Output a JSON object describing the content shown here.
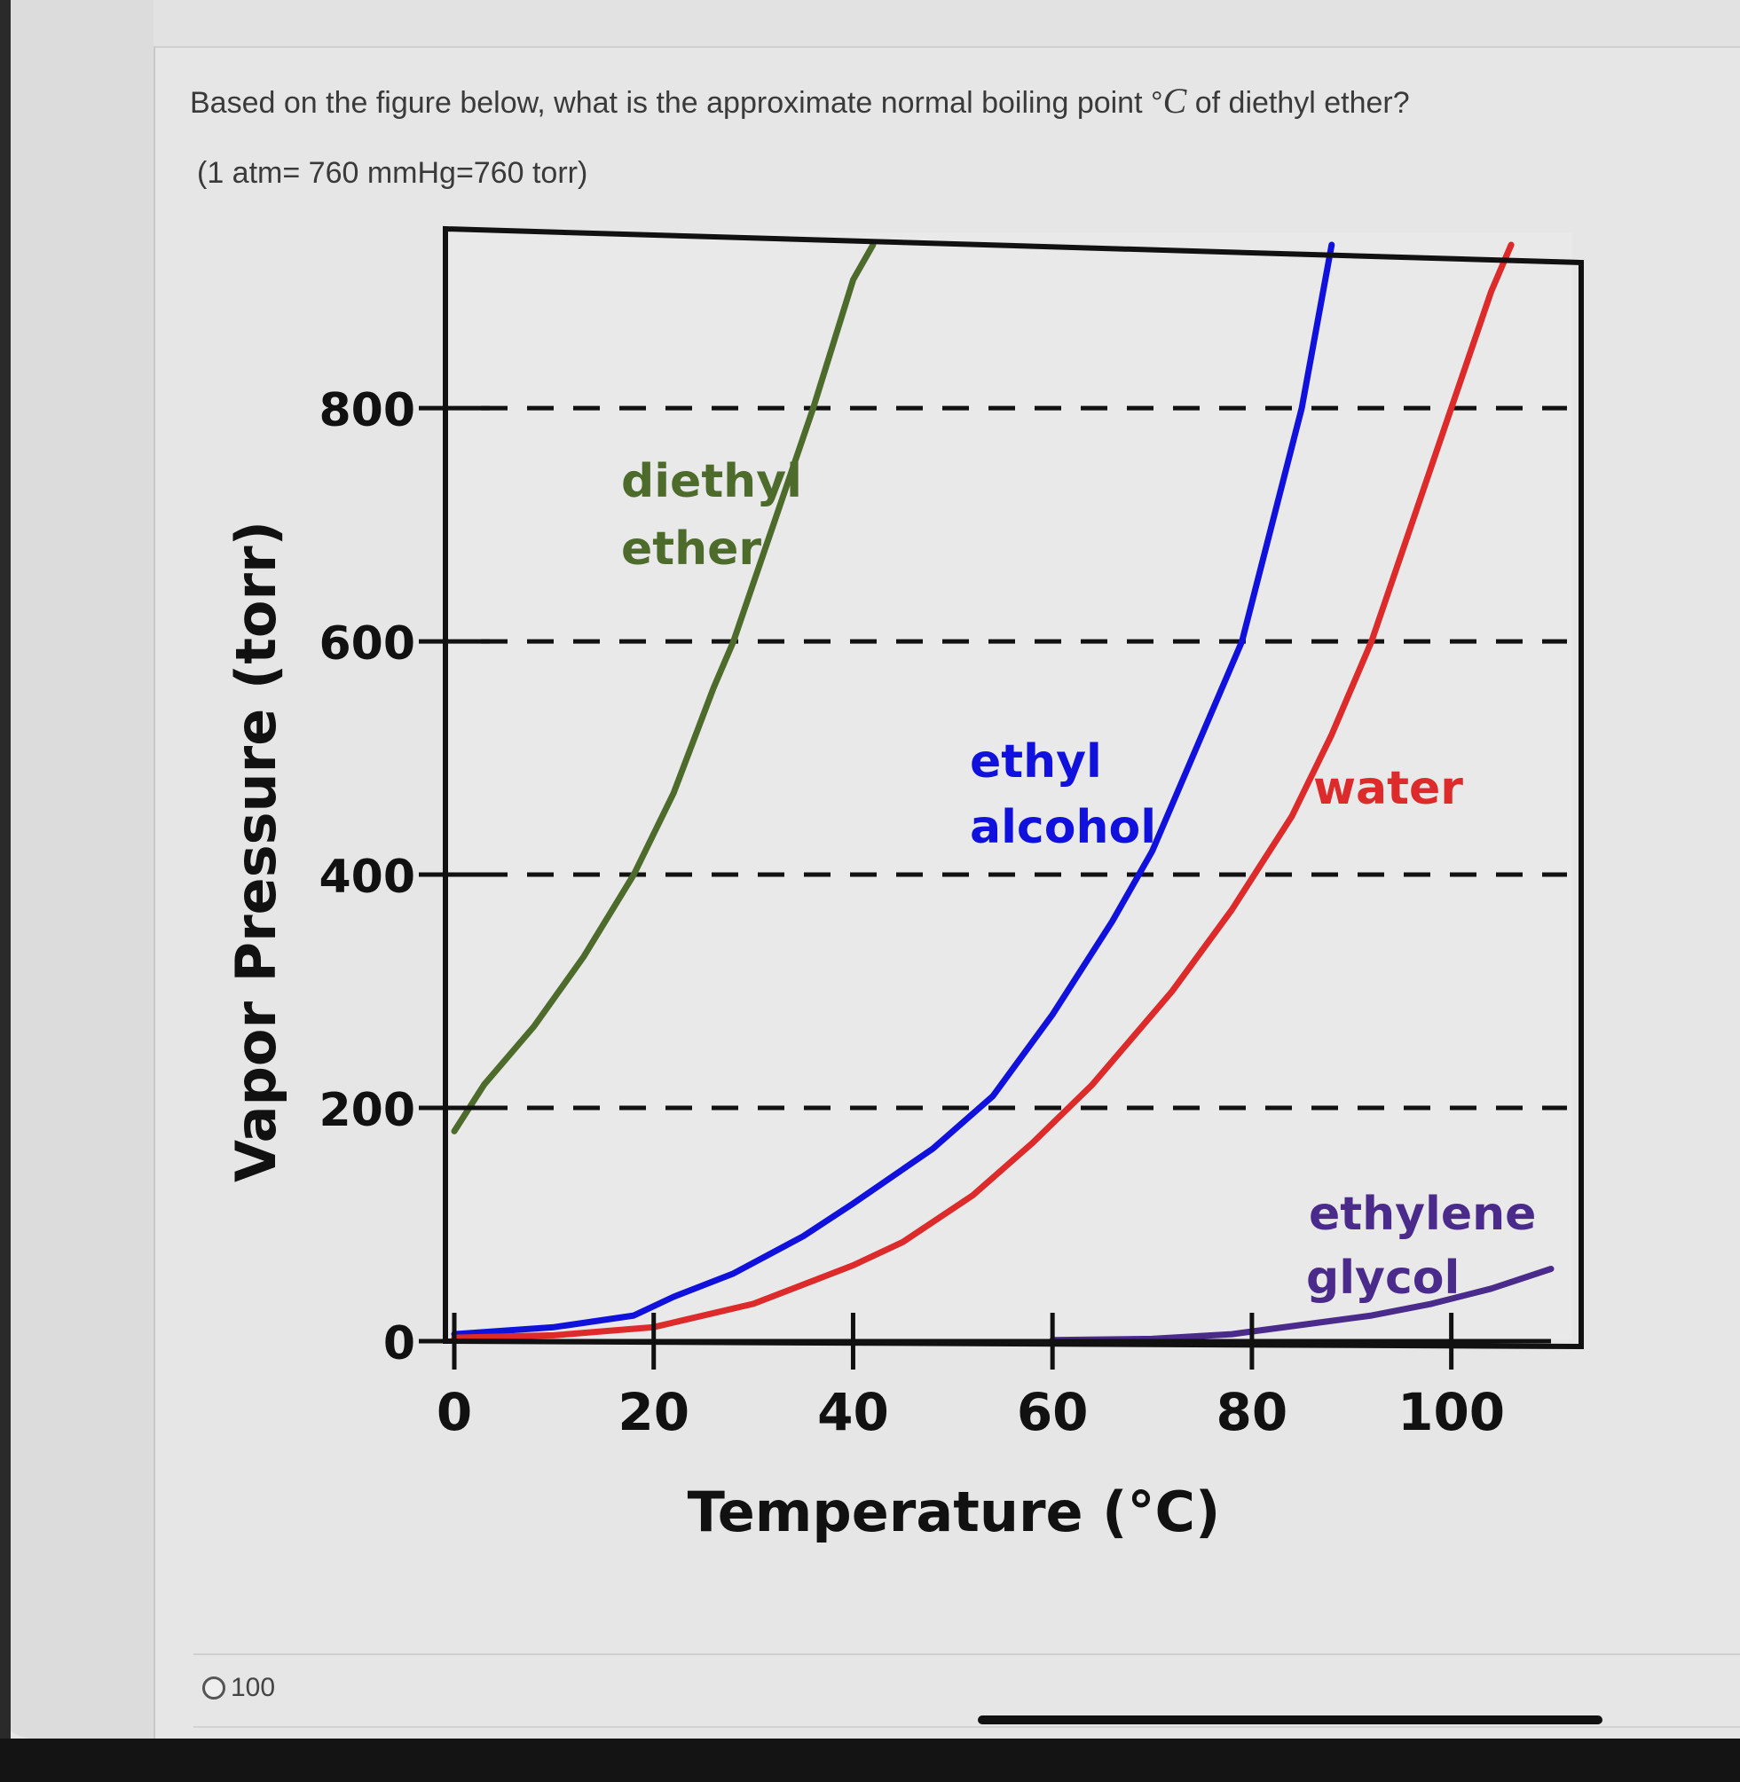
{
  "question": {
    "text_before": "Based on the figure below, what is the approximate normal boiling point °",
    "unit_symbol": "C",
    "text_after": " of diethyl ether?",
    "equivalence": "(1 atm= 760 mmHg=760 torr)"
  },
  "chart_data": {
    "type": "line",
    "title": "",
    "xlabel": "Temperature (°C)",
    "ylabel": "Vapor Pressure (torr)",
    "xlim": [
      0,
      110
    ],
    "ylim": [
      0,
      940
    ],
    "xticks": [
      0,
      20,
      40,
      60,
      80,
      100
    ],
    "xtick_labels": [
      "0",
      "20",
      "40",
      "60",
      "80",
      "100"
    ],
    "yticks": [
      0,
      200,
      400,
      600,
      800
    ],
    "ytick_labels": [
      "0",
      "200",
      "400",
      "600",
      "800"
    ],
    "grid": "horizontal dashed lines at 200, 400, 600, 800",
    "legend": "none; series labeled directly on plot",
    "series": [
      {
        "name": "diethyl ether",
        "color": "#4d6b2a",
        "points": [
          [
            0,
            180
          ],
          [
            3,
            220
          ],
          [
            8,
            270
          ],
          [
            13,
            330
          ],
          [
            18,
            400
          ],
          [
            22,
            470
          ],
          [
            26,
            560
          ],
          [
            28,
            600
          ],
          [
            32,
            700
          ],
          [
            36,
            800
          ],
          [
            40,
            910
          ],
          [
            42,
            940
          ]
        ]
      },
      {
        "name": "ethyl alcohol",
        "color": "#1111dd",
        "points": [
          [
            0,
            6
          ],
          [
            10,
            12
          ],
          [
            18,
            22
          ],
          [
            22,
            38
          ],
          [
            28,
            58
          ],
          [
            35,
            90
          ],
          [
            40,
            118
          ],
          [
            48,
            165
          ],
          [
            54,
            210
          ],
          [
            60,
            280
          ],
          [
            66,
            360
          ],
          [
            70,
            420
          ],
          [
            75,
            520
          ],
          [
            79,
            600
          ],
          [
            82,
            700
          ],
          [
            85,
            800
          ],
          [
            88,
            940
          ]
        ]
      },
      {
        "name": "water",
        "color": "#dd2a2a",
        "points": [
          [
            0,
            3
          ],
          [
            10,
            5
          ],
          [
            20,
            12
          ],
          [
            30,
            32
          ],
          [
            40,
            65
          ],
          [
            45,
            85
          ],
          [
            52,
            125
          ],
          [
            58,
            170
          ],
          [
            64,
            220
          ],
          [
            72,
            300
          ],
          [
            78,
            370
          ],
          [
            84,
            450
          ],
          [
            88,
            520
          ],
          [
            92,
            600
          ],
          [
            96,
            700
          ],
          [
            100,
            800
          ],
          [
            104,
            900
          ],
          [
            106,
            940
          ]
        ]
      },
      {
        "name": "ethylene glycol",
        "color": "#4a2a8a",
        "points": [
          [
            60,
            1
          ],
          [
            70,
            2
          ],
          [
            78,
            6
          ],
          [
            85,
            14
          ],
          [
            92,
            22
          ],
          [
            98,
            32
          ],
          [
            104,
            45
          ],
          [
            110,
            62
          ]
        ]
      }
    ],
    "labels": {
      "diethyl_1": "diethyl",
      "diethyl_2": "ether",
      "ethyl_1": "ethyl",
      "ethyl_2": "alcohol",
      "water": "water",
      "glycol_1": "ethylene",
      "glycol_2": "glycol"
    }
  },
  "answer_option": {
    "label": "100"
  }
}
